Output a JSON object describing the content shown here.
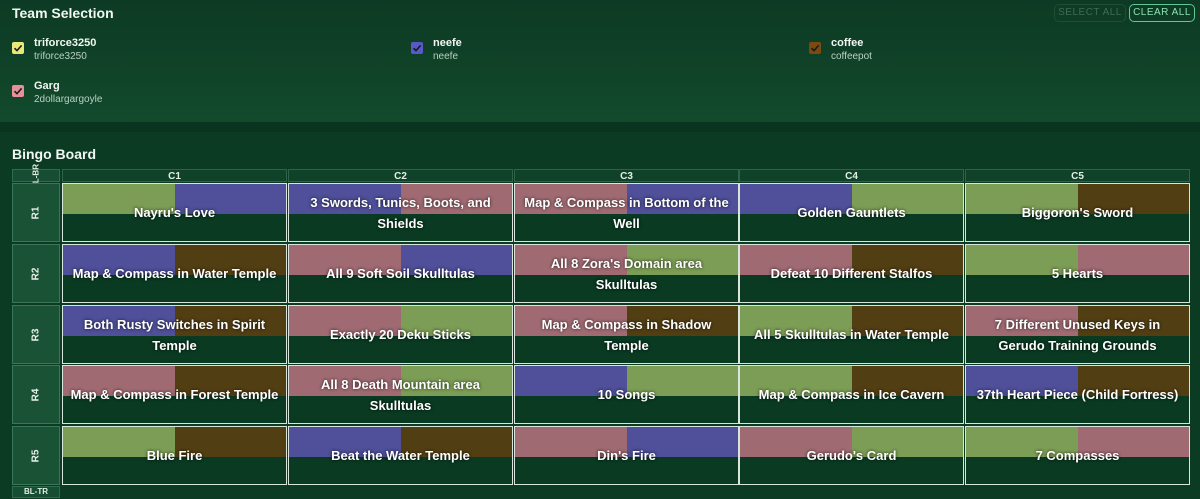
{
  "team_selection": {
    "title": "Team Selection",
    "select_all": "SELECT ALL",
    "clear_all": "CLEAR ALL",
    "teams": [
      {
        "name": "triforce3250",
        "user": "triforce3250",
        "color": "#e9e97a"
      },
      {
        "name": "neefe",
        "user": "neefe",
        "color": "#5858c8"
      },
      {
        "name": "coffee",
        "user": "coffeepot",
        "color": "#7a4a10"
      },
      {
        "name": "Garg",
        "user": "2dollargargoyle",
        "color": "#e8909a"
      }
    ]
  },
  "colors": {
    "green": "#7c9d55",
    "blue": "#4f4f9a",
    "brown": "#523e13",
    "pink": "#a06a72"
  },
  "board": {
    "title": "Bingo Board",
    "corner_top": "TL-BR",
    "corner_bottom": "BL-TR",
    "columns": [
      "C1",
      "C2",
      "C3",
      "C4",
      "C5"
    ],
    "rows": [
      "R1",
      "R2",
      "R3",
      "R4",
      "R5"
    ],
    "cells": [
      [
        {
          "goal": "Nayru's Love",
          "marks": [
            "green",
            "blue"
          ]
        },
        {
          "goal": "3 Swords, Tunics, Boots, and Shields",
          "marks": [
            "blue",
            "pink"
          ]
        },
        {
          "goal": "Map & Compass in Bottom of the Well",
          "marks": [
            "pink",
            "blue"
          ]
        },
        {
          "goal": "Golden Gauntlets",
          "marks": [
            "blue",
            "green"
          ]
        },
        {
          "goal": "Biggoron's Sword",
          "marks": [
            "green",
            "brown"
          ]
        }
      ],
      [
        {
          "goal": "Map & Compass in Water Temple",
          "marks": [
            "blue",
            "brown"
          ]
        },
        {
          "goal": "All 9 Soft Soil Skulltulas",
          "marks": [
            "pink",
            "blue"
          ]
        },
        {
          "goal": "All 8 Zora's Domain area Skulltulas",
          "marks": [
            "pink",
            "green"
          ]
        },
        {
          "goal": "Defeat 10 Different Stalfos",
          "marks": [
            "pink",
            "brown"
          ]
        },
        {
          "goal": "5 Hearts",
          "marks": [
            "green",
            "pink"
          ]
        }
      ],
      [
        {
          "goal": "Both Rusty Switches in Spirit Temple",
          "marks": [
            "blue",
            "brown"
          ]
        },
        {
          "goal": "Exactly 20 Deku Sticks",
          "marks": [
            "pink",
            "green"
          ]
        },
        {
          "goal": "Map & Compass in Shadow Temple",
          "marks": [
            "pink",
            "brown"
          ]
        },
        {
          "goal": "All 5 Skulltulas in Water Temple",
          "marks": [
            "green",
            "brown"
          ]
        },
        {
          "goal": "7 Different Unused Keys in Gerudo Training Grounds",
          "marks": [
            "pink",
            "brown"
          ]
        }
      ],
      [
        {
          "goal": "Map & Compass in Forest Temple",
          "marks": [
            "pink",
            "brown"
          ]
        },
        {
          "goal": "All 8 Death Mountain area Skulltulas",
          "marks": [
            "pink",
            "green"
          ]
        },
        {
          "goal": "10 Songs",
          "marks": [
            "blue",
            "green"
          ]
        },
        {
          "goal": "Map & Compass in Ice Cavern",
          "marks": [
            "green",
            "brown"
          ]
        },
        {
          "goal": "37th Heart Piece (Child Fortress)",
          "marks": [
            "blue",
            "brown"
          ]
        }
      ],
      [
        {
          "goal": "Blue Fire",
          "marks": [
            "green",
            "brown"
          ]
        },
        {
          "goal": "Beat the Water Temple",
          "marks": [
            "blue",
            "brown"
          ]
        },
        {
          "goal": "Din's Fire",
          "marks": [
            "pink",
            "blue"
          ]
        },
        {
          "goal": "Gerudo's Card",
          "marks": [
            "pink",
            "green"
          ]
        },
        {
          "goal": "7 Compasses",
          "marks": [
            "green",
            "pink"
          ]
        }
      ]
    ]
  }
}
